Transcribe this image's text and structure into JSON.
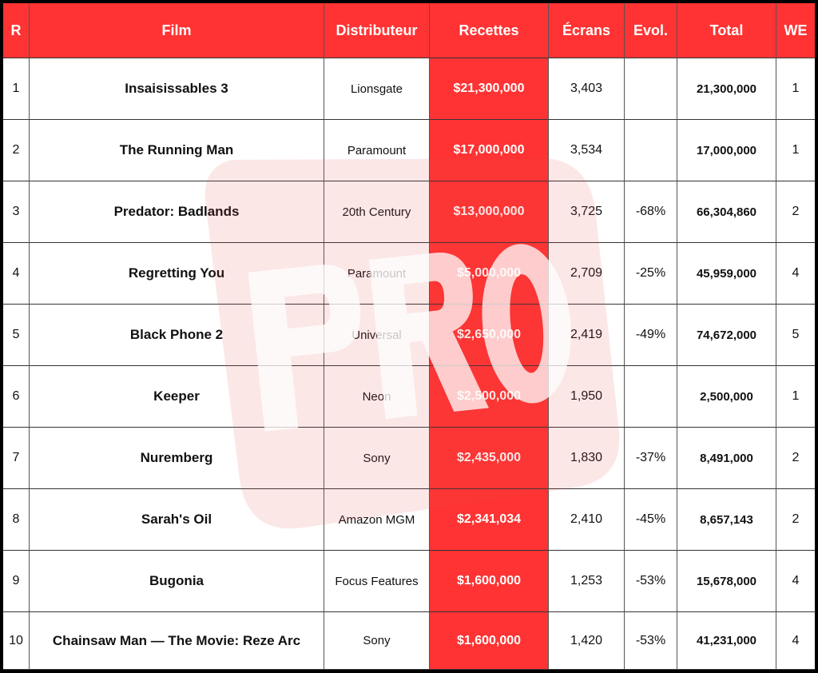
{
  "headers": [
    "R",
    "Film",
    "Distributeur",
    "Recettes",
    "Écrans",
    "Evol.",
    "Total",
    "WE"
  ],
  "rows": [
    {
      "rank": "1",
      "film": "Insaisissables 3",
      "distributor": "Lionsgate",
      "gross": "$21,300,000",
      "screens": "3,403",
      "change": "",
      "total": "21,300,000",
      "weeks": "1"
    },
    {
      "rank": "2",
      "film": "The Running Man",
      "distributor": "Paramount",
      "gross": "$17,000,000",
      "screens": "3,534",
      "change": "",
      "total": "17,000,000",
      "weeks": "1"
    },
    {
      "rank": "3",
      "film": "Predator: Badlands",
      "distributor": "20th Century",
      "gross": "$13,000,000",
      "screens": "3,725",
      "change": "-68%",
      "total": "66,304,860",
      "weeks": "2"
    },
    {
      "rank": "4",
      "film": "Regretting You",
      "distributor": "Paramount",
      "gross": "$5,000,000",
      "screens": "2,709",
      "change": "-25%",
      "total": "45,959,000",
      "weeks": "4"
    },
    {
      "rank": "5",
      "film": "Black Phone 2",
      "distributor": "Universal",
      "gross": "$2,650,000",
      "screens": "2,419",
      "change": "-49%",
      "total": "74,672,000",
      "weeks": "5"
    },
    {
      "rank": "6",
      "film": "Keeper",
      "distributor": "Neon",
      "gross": "$2,500,000",
      "screens": "1,950",
      "change": "",
      "total": "2,500,000",
      "weeks": "1"
    },
    {
      "rank": "7",
      "film": "Nuremberg",
      "distributor": "Sony",
      "gross": "$2,435,000",
      "screens": "1,830",
      "change": "-37%",
      "total": "8,491,000",
      "weeks": "2"
    },
    {
      "rank": "8",
      "film": "Sarah's Oil",
      "distributor": "Amazon MGM",
      "gross": "$2,341,034",
      "screens": "2,410",
      "change": "-45%",
      "total": "8,657,143",
      "weeks": "2"
    },
    {
      "rank": "9",
      "film": "Bugonia",
      "distributor": "Focus Features",
      "gross": "$1,600,000",
      "screens": "1,253",
      "change": "-53%",
      "total": "15,678,000",
      "weeks": "4"
    },
    {
      "rank": "10",
      "film": "Chainsaw Man — The Movie: Reze Arc",
      "distributor": "Sony",
      "gross": "$1,600,000",
      "screens": "1,420",
      "change": "-53%",
      "total": "41,231,000",
      "weeks": "4"
    }
  ],
  "watermark": {
    "text": "PRO"
  },
  "colors": {
    "accent": "#ff3333",
    "border": "#000000"
  }
}
